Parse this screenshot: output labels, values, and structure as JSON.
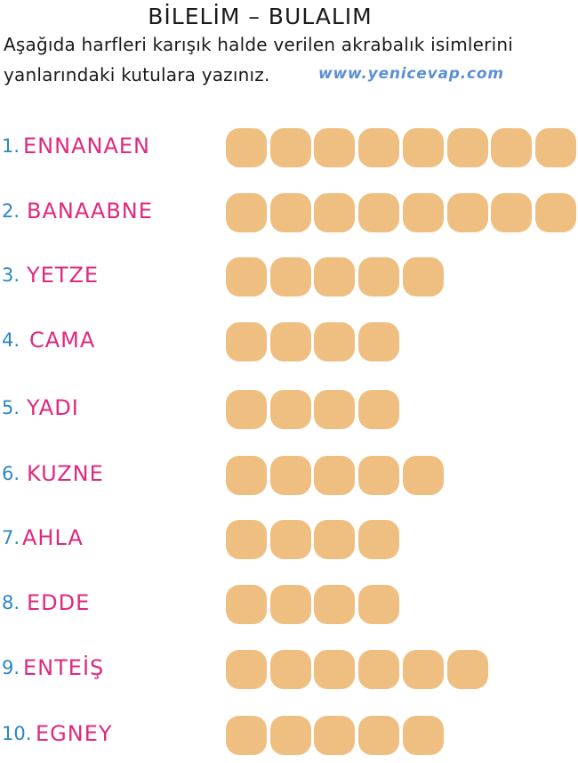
{
  "header": {
    "title": "BİLELİM – BULALIM",
    "instruction_line1": "Aşağıda harfleri karışık halde verilen akrabalık isimlerini",
    "instruction_line2": "yanlarındaki kutulara yazınız.",
    "website": "www.yenicevap.com"
  },
  "colors": {
    "number": "#2a86c4",
    "word": "#e0287e",
    "box": "#efbf82",
    "website": "#5b8fd6"
  },
  "items": [
    {
      "number": "1.",
      "word": "ENNANAEN",
      "box_count": 8
    },
    {
      "number": "2.",
      "word": "BANAABNE",
      "box_count": 8
    },
    {
      "number": "3.",
      "word": "YETZE",
      "box_count": 5
    },
    {
      "number": "4.",
      "word": "CAMA",
      "box_count": 4
    },
    {
      "number": "5.",
      "word": "YADI",
      "box_count": 4
    },
    {
      "number": "6.",
      "word": "KUZNE",
      "box_count": 5
    },
    {
      "number": "7.",
      "word": "AHLA",
      "box_count": 4
    },
    {
      "number": "8.",
      "word": "EDDE",
      "box_count": 4
    },
    {
      "number": "9.",
      "word": "ENTEİŞ",
      "box_count": 6
    },
    {
      "number": "10.",
      "word": "EGNEY",
      "box_count": 5
    }
  ]
}
